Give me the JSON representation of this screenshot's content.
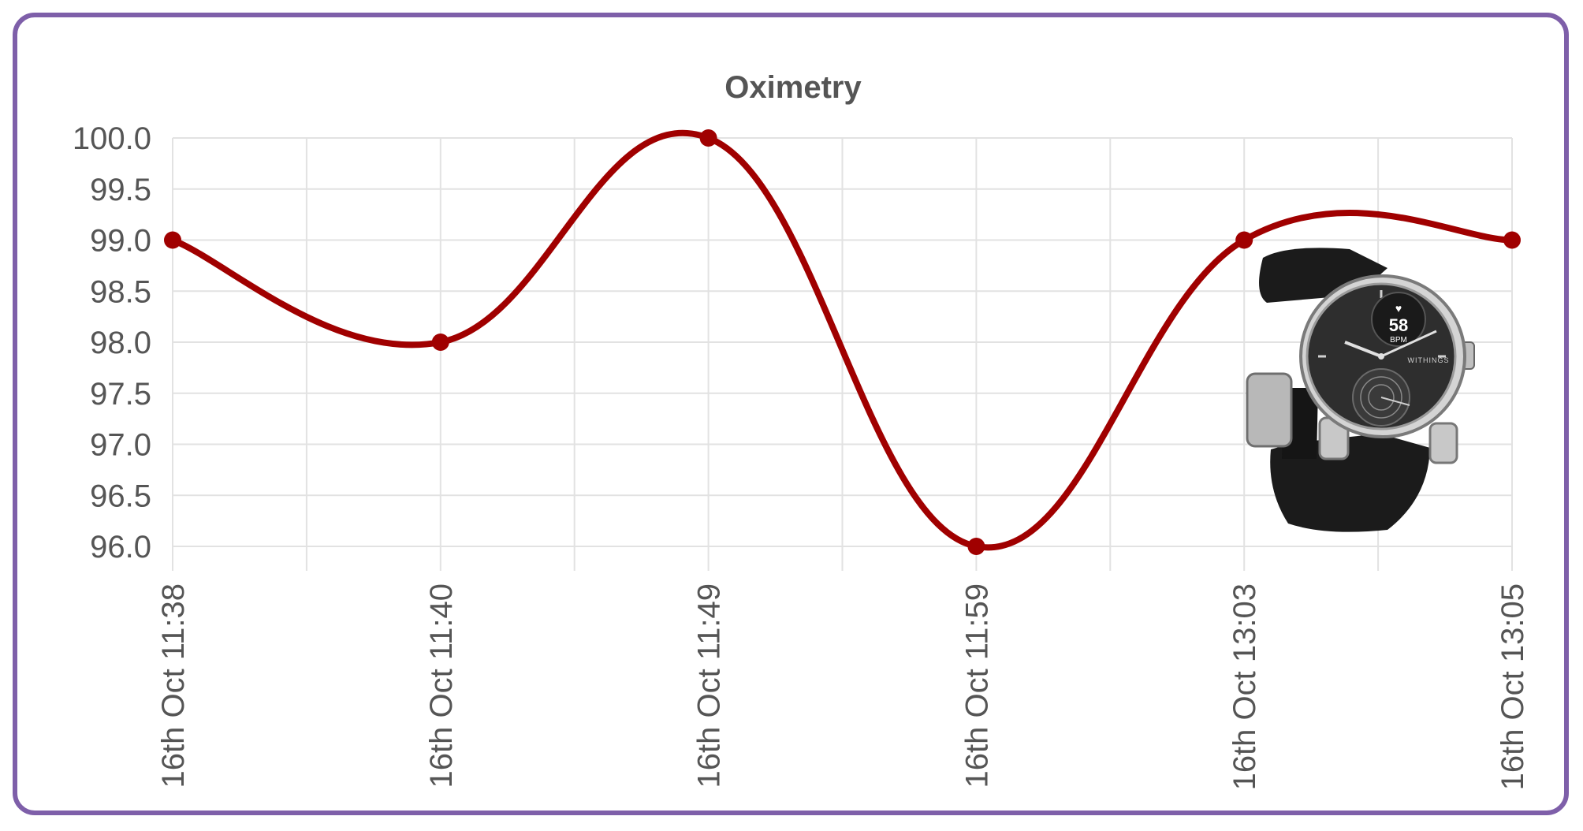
{
  "chart_data": {
    "type": "line",
    "title": "Oximetry",
    "xlabel": "",
    "ylabel": "",
    "categories": [
      "16th Oct 11:38",
      "16th Oct 11:40",
      "16th Oct 11:49",
      "16th Oct 11:59",
      "16th Oct 13:03",
      "16th Oct 13:05"
    ],
    "series": [
      {
        "values": [
          99.0,
          98.0,
          100.0,
          96.0,
          99.0,
          99.0
        ],
        "color": "#a00000"
      }
    ],
    "ylim": [
      96.0,
      100.0
    ],
    "yticks": [
      "100.0",
      "99.5",
      "99.0",
      "98.5",
      "98.0",
      "97.5",
      "97.0",
      "96.5",
      "96.0"
    ],
    "ytick_values": [
      100.0,
      99.5,
      99.0,
      98.5,
      98.0,
      97.5,
      97.0,
      96.5,
      96.0
    ],
    "grid": true,
    "smooth": true,
    "border_color": "#7e5fa9"
  },
  "watch": {
    "display_value": "58",
    "display_unit": "BPM",
    "brand": "WITHINGS"
  }
}
